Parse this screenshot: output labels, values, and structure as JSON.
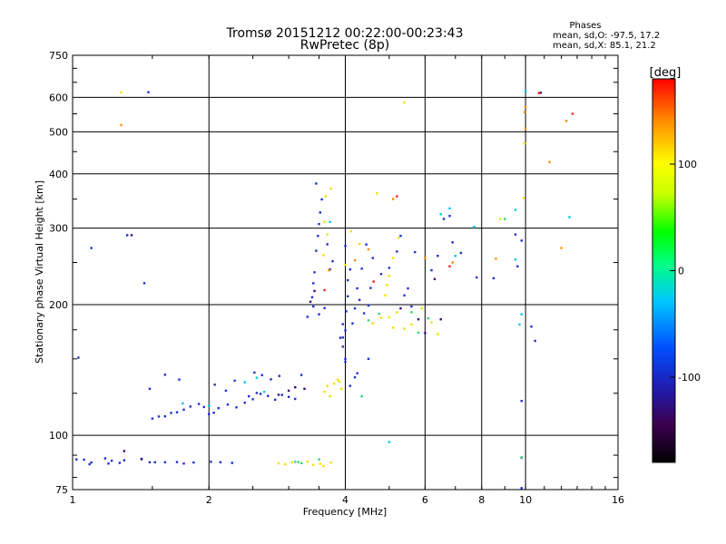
{
  "chart_data": {
    "type": "scatter",
    "title": "Tromsø 20151212 00:22:00-00:23:43",
    "subtitle": "RwPretec (8p)",
    "xlabel": "Frequency [MHz]",
    "ylabel": "Stationary phase Virtual Height [km]",
    "x_scale": "log2",
    "y_scale": "log",
    "xlim": [
      1,
      16
    ],
    "ylim": [
      75,
      750
    ],
    "x_ticks": [
      1,
      2,
      4,
      6,
      8,
      10,
      16
    ],
    "x_tick_labels": [
      "1",
      "2",
      "4",
      "6",
      "8",
      "10",
      "16"
    ],
    "x_gridlines": [
      2,
      4,
      6,
      8,
      10
    ],
    "y_ticks": [
      75,
      100,
      200,
      300,
      400,
      500,
      600,
      750
    ],
    "y_tick_labels": [
      "75",
      "100",
      "200",
      "300",
      "400",
      "500",
      "600",
      "750"
    ],
    "y_gridlines": [
      100,
      200,
      300,
      400,
      500,
      600
    ],
    "grid": true,
    "phases": {
      "heading": "Phases",
      "line_o": "mean, sd,O: -97.5, 17.2",
      "line_x": "mean, sd,X:  85.1, 21.2"
    },
    "colorbar": {
      "label": "[deg]",
      "ticks": [
        100,
        0,
        -100
      ],
      "tick_labels": [
        "100",
        "0",
        "-100"
      ],
      "range": [
        -180,
        180
      ],
      "colors": [
        "#000000",
        "#3c0050",
        "#1e1eb4",
        "#0050ff",
        "#00c8ff",
        "#00ff80",
        "#00ff00",
        "#c8ff00",
        "#ffff00",
        "#ff8c00",
        "#ff0000"
      ]
    },
    "series": [
      {
        "color": "#1f2fd0",
        "points": [
          [
            1.06,
            87.9
          ],
          [
            1.09,
            85.8
          ],
          [
            1.1,
            86.6
          ],
          [
            1.2,
            86.1
          ],
          [
            1.27,
            86.4
          ],
          [
            1.3,
            87.6
          ],
          [
            1.48,
            86.7
          ],
          [
            1.52,
            86.7
          ],
          [
            1.6,
            86.7
          ],
          [
            1.7,
            86.8
          ],
          [
            1.76,
            86.1
          ],
          [
            1.85,
            86.6
          ],
          [
            2.02,
            86.9
          ],
          [
            2.12,
            86.7
          ],
          [
            2.25,
            86.4
          ],
          [
            1.5,
            109.3
          ],
          [
            1.55,
            110.5
          ],
          [
            1.6,
            110.6
          ],
          [
            1.65,
            112.6
          ],
          [
            1.7,
            113.0
          ],
          [
            1.76,
            114.6
          ],
          [
            1.82,
            116.5
          ],
          [
            1.9,
            118.1
          ],
          [
            1.95,
            116.2
          ],
          [
            2.0,
            111.9
          ],
          [
            2.05,
            112.7
          ],
          [
            2.1,
            115.5
          ],
          [
            2.2,
            117.7
          ],
          [
            2.3,
            116.0
          ],
          [
            2.4,
            118.9
          ],
          [
            2.45,
            123.0
          ],
          [
            2.5,
            121.1
          ],
          [
            2.55,
            125.2
          ],
          [
            2.6,
            124.6
          ],
          [
            2.7,
            123.2
          ],
          [
            2.8,
            120.8
          ],
          [
            2.9,
            123.9
          ],
          [
            3.0,
            122.6
          ],
          [
            3.1,
            121.3
          ],
          [
            1.48,
            128.0
          ],
          [
            1.72,
            134.4
          ],
          [
            2.06,
            130.8
          ],
          [
            2.18,
            126.7
          ],
          [
            2.28,
            133.6
          ],
          [
            2.52,
            139.5
          ],
          [
            2.62,
            137.6
          ],
          [
            2.74,
            134.6
          ],
          [
            2.86,
            137.0
          ],
          [
            3.2,
            137.7
          ],
          [
            3.4,
            224.0
          ],
          [
            3.42,
            237.4
          ],
          [
            3.45,
            266.1
          ],
          [
            3.48,
            287.9
          ],
          [
            3.5,
            306.6
          ],
          [
            3.52,
            325.9
          ],
          [
            3.55,
            349.4
          ],
          [
            3.38,
            208.0
          ],
          [
            3.4,
            198.0
          ],
          [
            3.5,
            190.0
          ],
          [
            3.6,
            196.3
          ],
          [
            3.3,
            187.4
          ],
          [
            3.7,
            241.1
          ],
          [
            3.75,
            251.7
          ],
          [
            3.65,
            275.4
          ],
          [
            3.45,
            380.0
          ],
          [
            3.95,
            160.0
          ],
          [
            3.95,
            168.0
          ],
          [
            4.0,
            150.0
          ],
          [
            4.0,
            174.4
          ],
          [
            4.02,
            193.0
          ],
          [
            4.05,
            209.0
          ],
          [
            4.05,
            227.6
          ],
          [
            4.1,
            241.0
          ],
          [
            4.0,
            273.0
          ],
          [
            4.15,
            181.0
          ],
          [
            4.2,
            196.0
          ],
          [
            4.25,
            218.0
          ],
          [
            4.3,
            205.0
          ],
          [
            4.4,
            191.0
          ],
          [
            4.35,
            242.0
          ],
          [
            4.5,
            199.0
          ],
          [
            4.55,
            218.4
          ],
          [
            4.5,
            150.0
          ],
          [
            4.25,
            139.0
          ],
          [
            4.45,
            275.0
          ],
          [
            4.6,
            256.0
          ],
          [
            4.8,
            235.2
          ],
          [
            5.0,
            243.0
          ],
          [
            5.2,
            265.0
          ],
          [
            5.3,
            288.0
          ],
          [
            5.4,
            210.0
          ],
          [
            5.5,
            218.0
          ],
          [
            5.6,
            198.0
          ],
          [
            5.7,
            264.1
          ],
          [
            6.2,
            240.0
          ],
          [
            6.4,
            259.0
          ],
          [
            6.6,
            315.0
          ],
          [
            6.8,
            320.0
          ],
          [
            6.9,
            278.2
          ],
          [
            7.2,
            263.0
          ],
          [
            7.8,
            231.0
          ],
          [
            8.5,
            230.0
          ],
          [
            9.5,
            290.0
          ],
          [
            9.8,
            280.8
          ],
          [
            9.6,
            245.0
          ],
          [
            10.3,
            178.0
          ],
          [
            10.5,
            165.0
          ],
          [
            4.0,
            147.7
          ],
          [
            3.9,
            167.7
          ],
          [
            3.95,
            180.3
          ],
          [
            4.1,
            130.0
          ],
          [
            4.2,
            136.0
          ],
          [
            1.02,
            88.0
          ],
          [
            1.18,
            88.5
          ],
          [
            1.42,
            88.3
          ],
          [
            1.22,
            87.4
          ],
          [
            1.03,
            151.0
          ],
          [
            1.1,
            270.0
          ],
          [
            1.44,
            224.0
          ],
          [
            1.32,
            289.0
          ],
          [
            1.47,
            616.6
          ],
          [
            1.6,
            137.9
          ],
          [
            9.8,
            75.6
          ],
          [
            9.8,
            88.8
          ],
          [
            9.8,
            120.0
          ]
        ]
      },
      {
        "color": "#3a0a7a",
        "points": [
          [
            1.3,
            92.0
          ],
          [
            1.42,
            88.1
          ],
          [
            2.85,
            124.0
          ],
          [
            3.1,
            129.0
          ],
          [
            3.25,
            128.0
          ],
          [
            3.0,
            126.7
          ],
          [
            3.42,
            215.0
          ],
          [
            3.35,
            203.0
          ],
          [
            5.3,
            196.0
          ],
          [
            5.8,
            185.0
          ],
          [
            6.0,
            172.0
          ],
          [
            6.5,
            185.0
          ],
          [
            1.35,
            289.0
          ],
          [
            6.3,
            229.0
          ],
          [
            10.8,
            615.0
          ]
        ]
      },
      {
        "color": "#00c8e8",
        "points": [
          [
            2.4,
            132.5
          ],
          [
            2.55,
            135.7
          ],
          [
            2.65,
            126.0
          ],
          [
            1.75,
            118.5
          ],
          [
            2.0,
            116.9
          ],
          [
            3.7,
            310.0
          ],
          [
            5.0,
            96.5
          ],
          [
            6.8,
            333.0
          ],
          [
            7.0,
            258.9
          ],
          [
            7.7,
            302.0
          ],
          [
            9.5,
            330.5
          ],
          [
            9.5,
            254.0
          ],
          [
            10.0,
            620.0
          ],
          [
            12.5,
            318.0
          ],
          [
            9.7,
            180.0
          ],
          [
            9.8,
            190.0
          ],
          [
            6.5,
            323.0
          ]
        ]
      },
      {
        "color": "#30d870",
        "points": [
          [
            3.1,
            86.9
          ],
          [
            3.15,
            86.8
          ],
          [
            3.2,
            86.3
          ],
          [
            3.5,
            88.0
          ],
          [
            4.5,
            184.0
          ],
          [
            4.75,
            190.5
          ],
          [
            5.6,
            192.0
          ],
          [
            5.8,
            172.4
          ],
          [
            6.1,
            186.0
          ],
          [
            9.8,
            89.0
          ],
          [
            9.0,
            315.0
          ],
          [
            4.35,
            123.0
          ]
        ]
      },
      {
        "color": "#f0e000",
        "points": [
          [
            2.85,
            86.2
          ],
          [
            2.95,
            85.8
          ],
          [
            3.05,
            86.7
          ],
          [
            3.3,
            87.0
          ],
          [
            3.4,
            85.5
          ],
          [
            3.52,
            86.0
          ],
          [
            3.72,
            86.6
          ],
          [
            3.58,
            85.0
          ],
          [
            3.6,
            126.0
          ],
          [
            3.65,
            130.0
          ],
          [
            3.7,
            123.0
          ],
          [
            3.78,
            131.5
          ],
          [
            3.85,
            134.4
          ],
          [
            3.92,
            128.0
          ],
          [
            3.88,
            133.0
          ],
          [
            4.0,
            246.9
          ],
          [
            4.12,
            295.0
          ],
          [
            4.3,
            276.0
          ],
          [
            4.6,
            181.0
          ],
          [
            4.8,
            186.6
          ],
          [
            5.0,
            187.0
          ],
          [
            5.2,
            192.0
          ],
          [
            5.4,
            176.0
          ],
          [
            5.6,
            180.0
          ],
          [
            5.9,
            195.9
          ],
          [
            6.2,
            182.0
          ],
          [
            6.4,
            171.0
          ],
          [
            4.9,
            210.0
          ],
          [
            5.0,
            233.0
          ],
          [
            5.1,
            256.0
          ],
          [
            5.25,
            285.0
          ],
          [
            3.65,
            290.0
          ],
          [
            3.6,
            310.0
          ],
          [
            3.62,
            355.0
          ],
          [
            3.72,
            370.0
          ],
          [
            3.58,
            260.0
          ],
          [
            1.28,
            616.0
          ],
          [
            5.4,
            584.0
          ],
          [
            9.95,
            470.0
          ],
          [
            9.9,
            352.0
          ],
          [
            8.8,
            315.0
          ],
          [
            4.7,
            361.0
          ],
          [
            4.95,
            222.0
          ],
          [
            5.1,
            177.0
          ]
        ]
      },
      {
        "color": "#ff8c00",
        "points": [
          [
            1.28,
            518.0
          ],
          [
            9.95,
            555.0
          ],
          [
            10.0,
            508.0
          ],
          [
            10.0,
            570.0
          ],
          [
            12.3,
            530.0
          ],
          [
            12.0,
            270.0
          ],
          [
            11.3,
            426.0
          ],
          [
            5.1,
            350.0
          ],
          [
            4.2,
            253.0
          ],
          [
            4.5,
            268.0
          ],
          [
            6.0,
            256.0
          ],
          [
            3.68,
            240.0
          ],
          [
            6.9,
            250.0
          ],
          [
            8.6,
            255.0
          ]
        ]
      },
      {
        "color": "#ff2020",
        "points": [
          [
            12.7,
            550.0
          ],
          [
            10.7,
            614.0
          ],
          [
            4.62,
            226.0
          ],
          [
            6.8,
            245.0
          ],
          [
            3.6,
            216.0
          ],
          [
            5.2,
            355.0
          ]
        ]
      }
    ]
  }
}
